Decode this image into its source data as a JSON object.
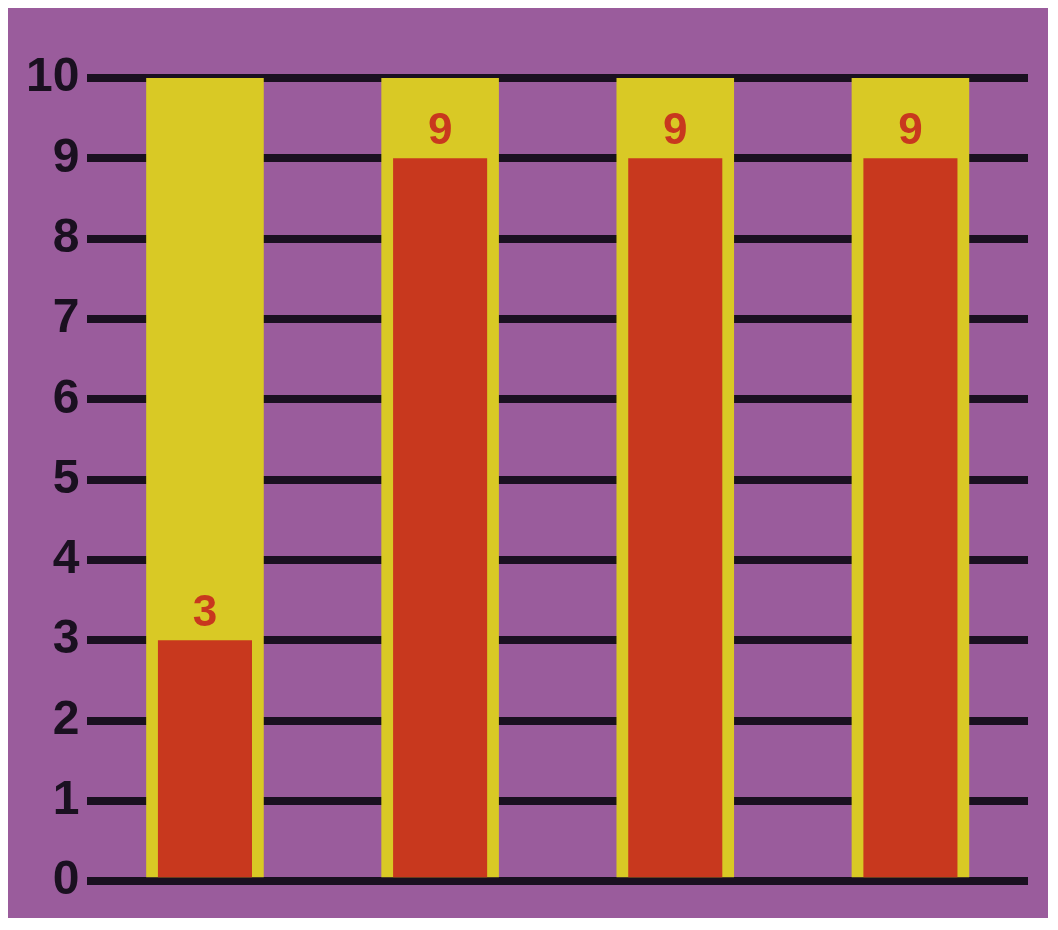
{
  "chart_data": {
    "type": "bar",
    "categories": [
      null,
      null,
      null,
      null
    ],
    "series": [
      {
        "color": "#c8381e",
        "values": [
          3,
          9,
          9,
          9
        ],
        "value_labels": [
          "3",
          "9",
          "9",
          "9"
        ]
      },
      {
        "color": "#d9c925",
        "values": [
          10,
          10,
          10,
          10
        ]
      }
    ],
    "ylim": [
      0,
      10
    ],
    "yticks": [
      0,
      1,
      2,
      3,
      4,
      5,
      6,
      7,
      8,
      9,
      10
    ],
    "grid": "y"
  }
}
